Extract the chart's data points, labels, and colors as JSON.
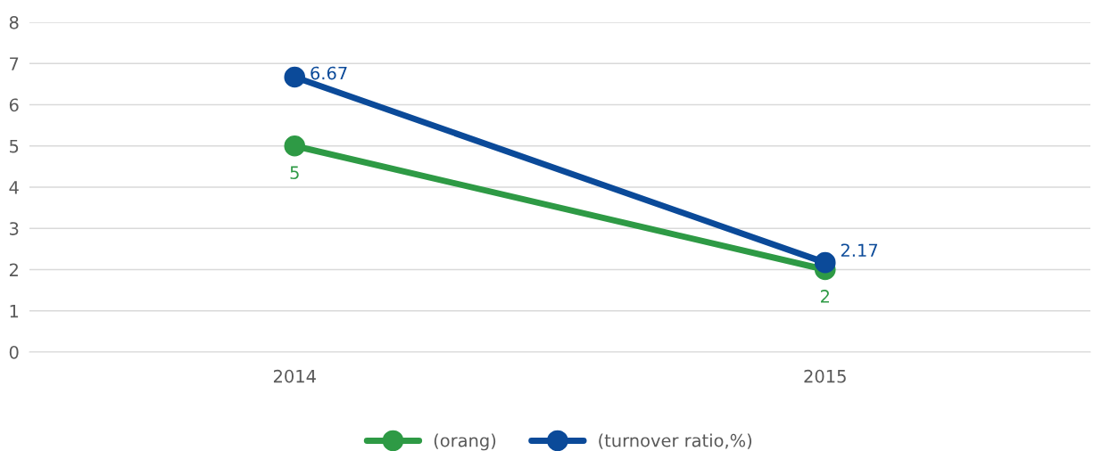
{
  "chart_data": {
    "type": "line",
    "categories": [
      "2014",
      "2015"
    ],
    "series": [
      {
        "name": "(orang)",
        "color": "#2e9a45",
        "values": [
          5,
          2
        ]
      },
      {
        "name": "(turnover ratio,%)",
        "color": "#0b4a99",
        "values": [
          6.67,
          2.17
        ]
      }
    ],
    "ylim": [
      0,
      8
    ],
    "yticks": [
      0,
      1,
      2,
      3,
      4,
      5,
      6,
      7,
      8
    ],
    "grid": "y",
    "legend": "bottom",
    "marker": "circle",
    "line_style": "solid",
    "data_labels": true
  }
}
